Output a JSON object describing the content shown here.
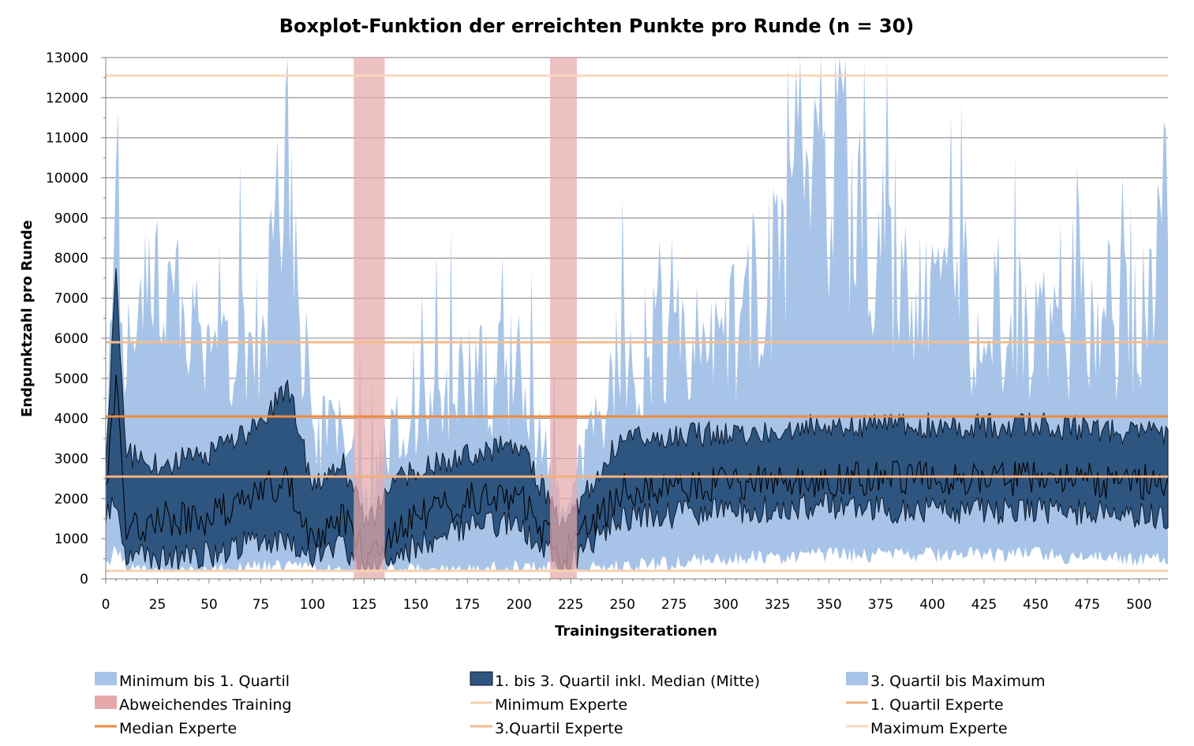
{
  "chart_data": {
    "type": "area",
    "title": "Boxplot-Funktion der erreichten Punkte pro Runde (n = 30)",
    "xlabel": "Trainingsiterationen",
    "ylabel": "Endpunktzahl pro Runde",
    "xlim": [
      0,
      514
    ],
    "ylim": [
      0,
      13000
    ],
    "x_ticks": [
      0,
      25,
      50,
      75,
      100,
      125,
      150,
      175,
      200,
      225,
      250,
      275,
      300,
      325,
      350,
      375,
      400,
      425,
      450,
      475,
      500
    ],
    "y_ticks": [
      0,
      1000,
      2000,
      3000,
      4000,
      5000,
      6000,
      7000,
      8000,
      9000,
      10000,
      11000,
      12000,
      13000
    ],
    "grid": true,
    "legend_position": "bottom",
    "colors": {
      "light_band": "#a7c4e8",
      "dark_band": "#2e5580",
      "dark_edge": "#0d1626",
      "median_line": "#000000",
      "deviating": "#e6a9a9",
      "expert_min": "#f5d2b0",
      "expert_q1": "#f2b07c",
      "expert_median": "#ef8a3c",
      "expert_q3": "#f4bd90",
      "expert_max": "#f8d8be",
      "gridline": "#7f7f7f"
    },
    "series_stats": {
      "note_x_step": 1,
      "control_points": [
        {
          "x": 0,
          "min": 200,
          "q1": 1500,
          "median": 2200,
          "q3": 2600,
          "max": 2600
        },
        {
          "x": 5,
          "min": 800,
          "q1": 2000,
          "median": 4800,
          "q3": 7300,
          "max": 13000
        },
        {
          "x": 10,
          "min": 200,
          "q1": 600,
          "median": 1200,
          "q3": 2800,
          "max": 7000
        },
        {
          "x": 25,
          "min": 200,
          "q1": 500,
          "median": 1500,
          "q3": 2500,
          "max": 9000
        },
        {
          "x": 50,
          "min": 200,
          "q1": 600,
          "median": 1500,
          "q3": 2800,
          "max": 7000
        },
        {
          "x": 75,
          "min": 300,
          "q1": 1000,
          "median": 2200,
          "q3": 3500,
          "max": 8000
        },
        {
          "x": 88,
          "min": 300,
          "q1": 900,
          "median": 2500,
          "q3": 4500,
          "max": 13000
        },
        {
          "x": 100,
          "min": 200,
          "q1": 500,
          "median": 1000,
          "q3": 2000,
          "max": 4500
        },
        {
          "x": 115,
          "min": 200,
          "q1": 800,
          "median": 1600,
          "q3": 2500,
          "max": 4500
        },
        {
          "x": 127,
          "min": 200,
          "q1": 300,
          "median": 500,
          "q3": 1000,
          "max": 2500
        },
        {
          "x": 140,
          "min": 200,
          "q1": 600,
          "median": 1300,
          "q3": 2200,
          "max": 4500
        },
        {
          "x": 175,
          "min": 200,
          "q1": 1300,
          "median": 2000,
          "q3": 2800,
          "max": 6000
        },
        {
          "x": 200,
          "min": 300,
          "q1": 1400,
          "median": 2100,
          "q3": 3000,
          "max": 6500
        },
        {
          "x": 221,
          "min": 200,
          "q1": 300,
          "median": 500,
          "q3": 1000,
          "max": 2000
        },
        {
          "x": 250,
          "min": 300,
          "q1": 1500,
          "median": 2200,
          "q3": 3200,
          "max": 7000
        },
        {
          "x": 300,
          "min": 500,
          "q1": 1700,
          "median": 2400,
          "q3": 3300,
          "max": 7500
        },
        {
          "x": 350,
          "min": 600,
          "q1": 1800,
          "median": 2500,
          "q3": 3500,
          "max": 12500
        },
        {
          "x": 400,
          "min": 600,
          "q1": 1700,
          "median": 2500,
          "q3": 3500,
          "max": 8000
        },
        {
          "x": 450,
          "min": 600,
          "q1": 1700,
          "median": 2500,
          "q3": 3500,
          "max": 8000
        },
        {
          "x": 500,
          "min": 500,
          "q1": 1600,
          "median": 2400,
          "q3": 3300,
          "max": 8000
        },
        {
          "x": 514,
          "min": 500,
          "q1": 1500,
          "median": 2500,
          "q3": 3300,
          "max": 11500
        }
      ]
    },
    "deviating_training_ranges": [
      [
        120,
        135
      ],
      [
        215,
        228
      ]
    ],
    "expert_lines": {
      "minimum": 200,
      "q1": 2550,
      "median": 4050,
      "q3": 5900,
      "maximum": 12550
    },
    "legend": [
      {
        "key": "min_q1",
        "label": "Minimum bis 1. Quartil"
      },
      {
        "key": "q1_q3",
        "label": "1. bis 3. Quartil inkl. Median (Mitte)"
      },
      {
        "key": "q3_max",
        "label": "3. Quartil bis Maximum"
      },
      {
        "key": "deviating",
        "label": "Abweichendes Training"
      },
      {
        "key": "expert_min",
        "label": "Minimum Experte"
      },
      {
        "key": "expert_q1",
        "label": "1. Quartil Experte"
      },
      {
        "key": "expert_median",
        "label": "Median Experte"
      },
      {
        "key": "expert_q3",
        "label": "3.Quartil Experte"
      },
      {
        "key": "expert_max",
        "label": "Maximum Experte"
      }
    ]
  }
}
